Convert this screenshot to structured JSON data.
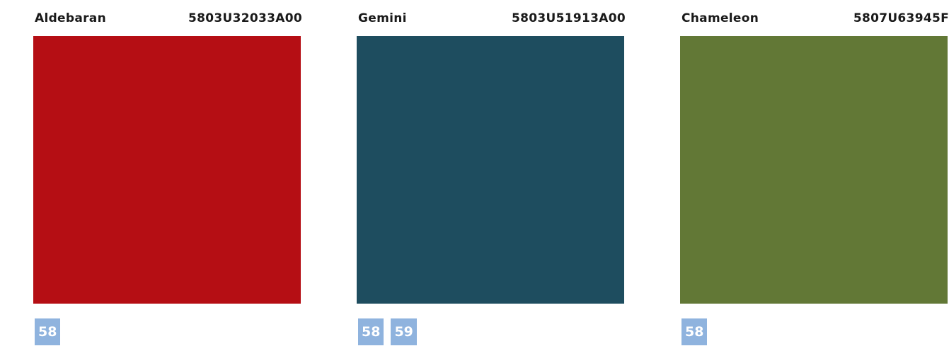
{
  "cards": [
    {
      "name": "Aldebaran",
      "code": "5803U32033A00",
      "color": "#b50e14",
      "badges": [
        "58"
      ]
    },
    {
      "name": "Gemini",
      "code": "5803U51913A00",
      "color": "#1e4d5f",
      "badges": [
        "58",
        "59"
      ]
    },
    {
      "name": "Chameleon",
      "code": "5807U63945F",
      "color": "#627836",
      "badges": [
        "58"
      ]
    }
  ]
}
